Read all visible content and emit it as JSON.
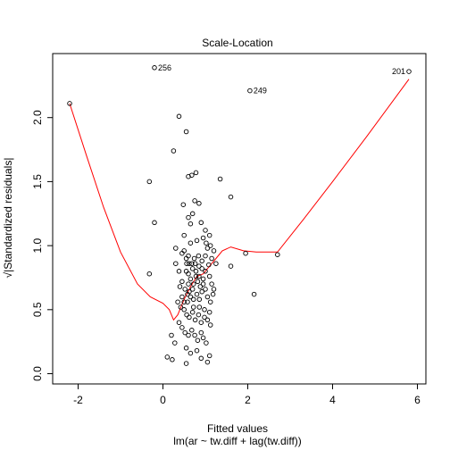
{
  "chart_data": {
    "type": "scatter",
    "title": "Scale-Location",
    "xlabel": "Fitted values",
    "xsublabel": "lm(ar ~ tw.diff + lag(tw.diff))",
    "ylabel": "√|Standardized residuals|",
    "xlim": [
      -2.6,
      6.2
    ],
    "ylim": [
      -0.08,
      2.5
    ],
    "x_ticks": [
      -2,
      0,
      2,
      4,
      6
    ],
    "y_ticks": [
      0.0,
      0.5,
      1.0,
      1.5,
      2.0
    ],
    "x_tick_labels": [
      "-2",
      "0",
      "2",
      "4",
      "6"
    ],
    "y_tick_labels": [
      "0.0",
      "0.5",
      "1.0",
      "1.5",
      "2.0"
    ],
    "grid": false,
    "point_color": "#000000",
    "line_color": "#ff0000",
    "points": [
      [
        -2.2,
        2.11
      ],
      [
        -0.2,
        2.39
      ],
      [
        2.05,
        2.21
      ],
      [
        5.8,
        2.36
      ],
      [
        0.38,
        2.01
      ],
      [
        0.55,
        1.89
      ],
      [
        0.25,
        1.74
      ],
      [
        -0.32,
        1.5
      ],
      [
        0.6,
        1.54
      ],
      [
        0.68,
        1.55
      ],
      [
        0.78,
        1.57
      ],
      [
        1.35,
        1.52
      ],
      [
        1.6,
        1.38
      ],
      [
        0.48,
        1.32
      ],
      [
        0.75,
        1.35
      ],
      [
        0.85,
        1.33
      ],
      [
        -0.2,
        1.18
      ],
      [
        0.6,
        1.22
      ],
      [
        0.65,
        1.17
      ],
      [
        0.7,
        1.25
      ],
      [
        0.9,
        1.18
      ],
      [
        1.0,
        1.12
      ],
      [
        1.1,
        1.08
      ],
      [
        0.5,
        1.08
      ],
      [
        0.3,
        0.98
      ],
      [
        0.45,
        0.94
      ],
      [
        0.55,
        0.9
      ],
      [
        0.62,
        0.86
      ],
      [
        0.7,
        0.82
      ],
      [
        0.78,
        0.8
      ],
      [
        0.85,
        0.84
      ],
      [
        0.92,
        0.88
      ],
      [
        1.0,
        0.92
      ],
      [
        1.05,
        0.98
      ],
      [
        1.12,
        1.0
      ],
      [
        1.2,
        0.96
      ],
      [
        0.55,
        0.8
      ],
      [
        0.6,
        0.78
      ],
      [
        0.65,
        0.74
      ],
      [
        0.72,
        0.7
      ],
      [
        0.78,
        0.76
      ],
      [
        0.82,
        0.72
      ],
      [
        0.88,
        0.68
      ],
      [
        0.95,
        0.74
      ],
      [
        1.0,
        0.8
      ],
      [
        1.08,
        0.85
      ],
      [
        1.15,
        0.9
      ],
      [
        1.25,
        0.86
      ],
      [
        0.45,
        0.72
      ],
      [
        0.52,
        0.66
      ],
      [
        0.58,
        0.62
      ],
      [
        0.65,
        0.6
      ],
      [
        0.72,
        0.58
      ],
      [
        0.8,
        0.62
      ],
      [
        0.86,
        0.58
      ],
      [
        0.92,
        0.64
      ],
      [
        1.0,
        0.66
      ],
      [
        1.05,
        0.6
      ],
      [
        1.12,
        0.56
      ],
      [
        1.18,
        0.62
      ],
      [
        0.35,
        0.56
      ],
      [
        0.42,
        0.52
      ],
      [
        0.5,
        0.5
      ],
      [
        0.56,
        0.46
      ],
      [
        0.62,
        0.44
      ],
      [
        0.7,
        0.48
      ],
      [
        0.76,
        0.42
      ],
      [
        0.84,
        0.46
      ],
      [
        0.9,
        0.4
      ],
      [
        0.98,
        0.44
      ],
      [
        1.05,
        0.42
      ],
      [
        1.12,
        0.38
      ],
      [
        0.38,
        0.4
      ],
      [
        0.45,
        0.36
      ],
      [
        0.52,
        0.32
      ],
      [
        0.6,
        0.3
      ],
      [
        0.68,
        0.34
      ],
      [
        0.75,
        0.3
      ],
      [
        0.82,
        0.26
      ],
      [
        0.9,
        0.32
      ],
      [
        0.95,
        0.28
      ],
      [
        1.02,
        0.24
      ],
      [
        0.2,
        0.3
      ],
      [
        0.28,
        0.24
      ],
      [
        0.55,
        0.2
      ],
      [
        0.65,
        0.16
      ],
      [
        0.8,
        0.18
      ],
      [
        0.9,
        0.12
      ],
      [
        0.1,
        0.13
      ],
      [
        0.22,
        0.11
      ],
      [
        0.55,
        0.08
      ],
      [
        1.05,
        0.09
      ],
      [
        1.1,
        0.14
      ],
      [
        0.3,
        0.86
      ],
      [
        0.38,
        0.8
      ],
      [
        0.4,
        0.68
      ],
      [
        -0.32,
        0.78
      ],
      [
        0.5,
        0.96
      ],
      [
        0.65,
        1.02
      ],
      [
        0.8,
        1.04
      ],
      [
        0.95,
        1.06
      ],
      [
        1.02,
        1.02
      ],
      [
        1.6,
        0.84
      ],
      [
        1.95,
        0.94
      ],
      [
        2.15,
        0.62
      ],
      [
        2.7,
        0.93
      ],
      [
        0.6,
        0.92
      ],
      [
        0.74,
        0.9
      ],
      [
        0.84,
        0.92
      ],
      [
        0.56,
        0.86
      ],
      [
        0.68,
        0.86
      ],
      [
        0.76,
        0.86
      ],
      [
        0.92,
        0.82
      ],
      [
        1.1,
        0.76
      ],
      [
        1.15,
        0.7
      ],
      [
        1.2,
        0.66
      ],
      [
        0.6,
        0.7
      ],
      [
        0.7,
        0.66
      ],
      [
        0.85,
        0.76
      ],
      [
        0.95,
        0.7
      ],
      [
        0.5,
        0.56
      ],
      [
        0.58,
        0.56
      ],
      [
        0.72,
        0.52
      ],
      [
        0.86,
        0.52
      ],
      [
        0.98,
        0.5
      ],
      [
        1.1,
        0.48
      ],
      [
        0.45,
        0.6
      ],
      [
        0.62,
        0.64
      ]
    ],
    "point_labels": [
      {
        "text": "256",
        "x": -0.2,
        "y": 2.39,
        "side": "right"
      },
      {
        "text": "249",
        "x": 2.05,
        "y": 2.21,
        "side": "right"
      },
      {
        "text": "201",
        "x": 5.8,
        "y": 2.36,
        "side": "left"
      }
    ],
    "smooth_line": [
      [
        -2.2,
        2.11
      ],
      [
        -1.8,
        1.7
      ],
      [
        -1.4,
        1.3
      ],
      [
        -1.0,
        0.95
      ],
      [
        -0.6,
        0.7
      ],
      [
        -0.3,
        0.6
      ],
      [
        0.0,
        0.55
      ],
      [
        0.15,
        0.5
      ],
      [
        0.25,
        0.42
      ],
      [
        0.35,
        0.46
      ],
      [
        0.5,
        0.58
      ],
      [
        0.65,
        0.68
      ],
      [
        0.8,
        0.76
      ],
      [
        0.95,
        0.78
      ],
      [
        1.1,
        0.84
      ],
      [
        1.25,
        0.9
      ],
      [
        1.4,
        0.96
      ],
      [
        1.6,
        0.99
      ],
      [
        1.9,
        0.96
      ],
      [
        2.2,
        0.95
      ],
      [
        2.7,
        0.95
      ],
      [
        3.3,
        1.2
      ],
      [
        4.0,
        1.5
      ],
      [
        4.8,
        1.85
      ],
      [
        5.8,
        2.3
      ]
    ]
  }
}
